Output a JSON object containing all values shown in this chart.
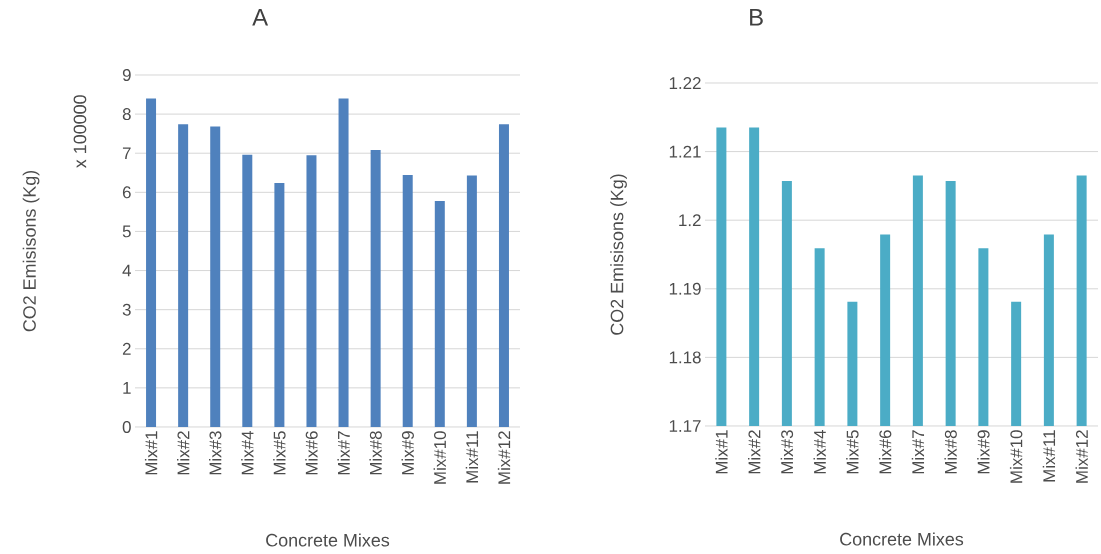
{
  "chart_data": [
    {
      "type": "bar",
      "title": "A",
      "xlabel": "Concrete Mixes",
      "ylabel": "CO2 Emisisons (Kg)",
      "annotations": [
        "x 100000"
      ],
      "categories": [
        "Mix#1",
        "Mix#2",
        "Mix#3",
        "Mix#4",
        "Mix#5",
        "Mix#6",
        "Mix#7",
        "Mix#8",
        "Mix#9",
        "Mix#10",
        "Mix#11",
        "Mix#12"
      ],
      "values": [
        8.4,
        7.74,
        7.68,
        6.96,
        6.24,
        6.95,
        8.4,
        7.08,
        6.44,
        5.78,
        6.43,
        7.74
      ],
      "color": "#4f81bd",
      "ylim": [
        0,
        9
      ],
      "yticks": [
        0,
        1,
        2,
        3,
        4,
        5,
        6,
        7,
        8,
        9
      ],
      "grid": "y"
    },
    {
      "type": "bar",
      "title": "B",
      "xlabel": "Concrete Mixes",
      "ylabel": "CO2 Emisisons (Kg)",
      "categories": [
        "Mix#1",
        "Mix#2",
        "Mix#3",
        "Mix#4",
        "Mix#5",
        "Mix#6",
        "Mix#7",
        "Mix#8",
        "Mix#9",
        "Mix#10",
        "Mix#11",
        "Mix#12"
      ],
      "values": [
        1.2135,
        1.2135,
        1.2057,
        1.1959,
        1.1881,
        1.1979,
        1.2065,
        1.2057,
        1.1959,
        1.1881,
        1.1979,
        1.2065
      ],
      "color": "#4bacc6",
      "ylim": [
        1.17,
        1.22
      ],
      "yticks": [
        1.17,
        1.18,
        1.19,
        1.2,
        1.21,
        1.22
      ],
      "grid": "y"
    }
  ]
}
